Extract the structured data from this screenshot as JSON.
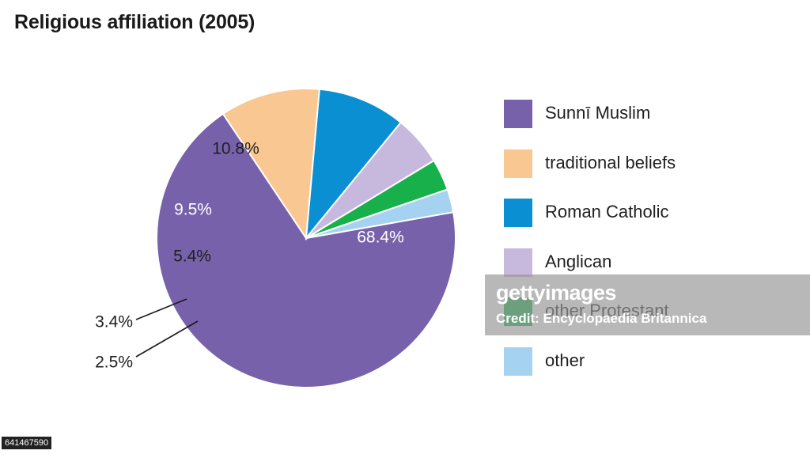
{
  "chart_data": {
    "type": "pie",
    "title": "Religious affiliation (2005)",
    "slices": [
      {
        "label": "Sunnī Muslim",
        "value": 68.4,
        "value_label": "68.4%",
        "color": "#7761aa",
        "text_color": "#ffffff"
      },
      {
        "label": "traditional beliefs",
        "value": 10.8,
        "value_label": "10.8%",
        "color": "#f9c791",
        "text_color": "#1f1f1f"
      },
      {
        "label": "Roman Catholic",
        "value": 9.5,
        "value_label": "9.5%",
        "color": "#0a8fd3",
        "text_color": "#ffffff"
      },
      {
        "label": "Anglican",
        "value": 5.4,
        "value_label": "5.4%",
        "color": "#c7b9de",
        "text_color": "#1f1f1f"
      },
      {
        "label": "other Protestant",
        "value": 3.4,
        "value_label": "3.4%",
        "color": "#17b04b",
        "text_color": "#1f1f1f"
      },
      {
        "label": "other",
        "value": 2.5,
        "value_label": "2.5%",
        "color": "#a5d2f0",
        "text_color": "#1f1f1f"
      }
    ],
    "legend_position": "right"
  },
  "watermark": {
    "logo": "gettyimages",
    "credit": "Credit: Encyclopaedia Britannica"
  },
  "image_id": "641467590"
}
